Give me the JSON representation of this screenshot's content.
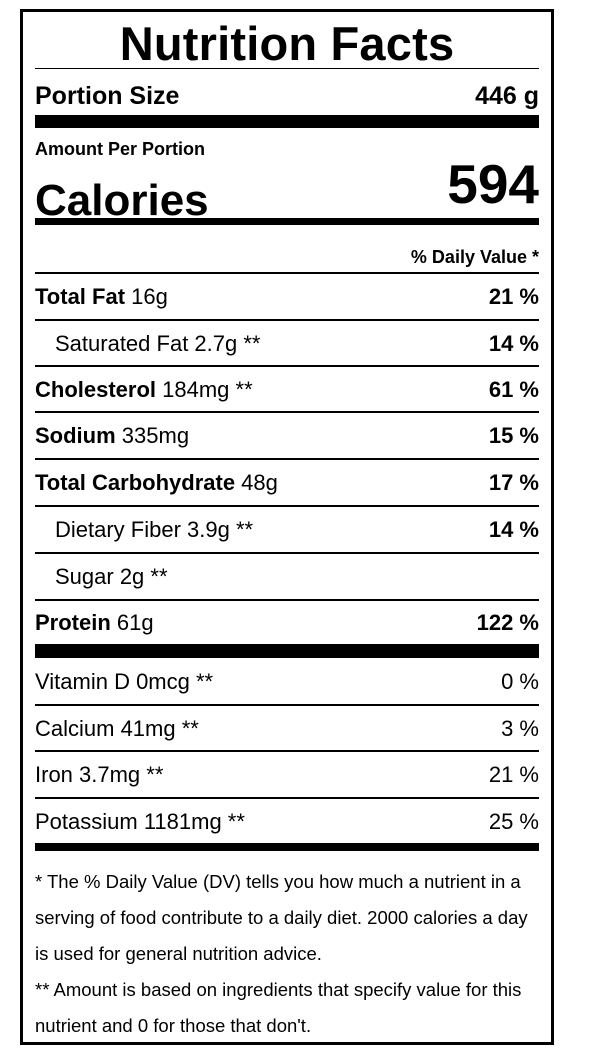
{
  "title": "Nutrition Facts",
  "portion": {
    "label": "Portion Size",
    "value": "446 g"
  },
  "amount_per_portion": "Amount Per Portion",
  "calories": {
    "label": "Calories",
    "value": "594"
  },
  "daily_value_header": "% Daily Value *",
  "nutrients": [
    {
      "name": "Total Fat",
      "amount": " 16g",
      "dv": "21 %"
    },
    {
      "name": "Saturated Fat 2.7g **",
      "amount": "",
      "dv": "14 %"
    },
    {
      "name": "Cholesterol",
      "amount": " 184mg **",
      "dv": "61 %"
    },
    {
      "name": "Sodium",
      "amount": " 335mg",
      "dv": "15 %"
    },
    {
      "name": "Total Carbohydrate",
      "amount": " 48g",
      "dv": "17 %"
    },
    {
      "name": "Dietary Fiber 3.9g **",
      "amount": "",
      "dv": "14 %"
    },
    {
      "name": "Sugar 2g **",
      "amount": "",
      "dv": ""
    },
    {
      "name": "Protein",
      "amount": " 61g",
      "dv": "122 %"
    }
  ],
  "vitamins": [
    {
      "name": "Vitamin D 0mcg **",
      "dv": "0 %"
    },
    {
      "name": "Calcium 41mg **",
      "dv": "3 %"
    },
    {
      "name": "Iron 3.7mg **",
      "dv": "21 %"
    },
    {
      "name": "Potassium 1181mg **",
      "dv": "25 %"
    }
  ],
  "footnotes": [
    "* The % Daily Value (DV) tells you how much a nutrient in a serving of food contribute to a daily diet. 2000 calories a day is used for general nutrition advice.",
    "** Amount is based on ingredients that specify value for this nutrient and 0 for those that don't."
  ]
}
